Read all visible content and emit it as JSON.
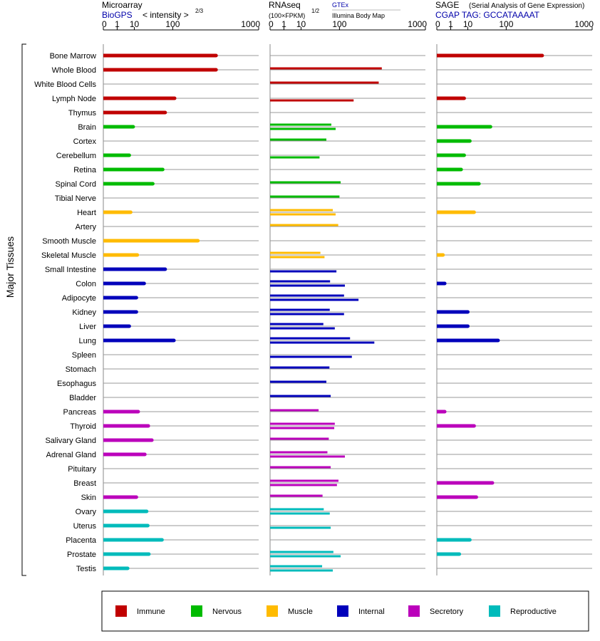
{
  "y_axis_label": "Major Tissues",
  "tissues": [
    {
      "name": "Bone Marrow",
      "group": "immune"
    },
    {
      "name": "Whole Blood",
      "group": "immune"
    },
    {
      "name": "White Blood Cells",
      "group": "immune"
    },
    {
      "name": "Lymph Node",
      "group": "immune"
    },
    {
      "name": "Thymus",
      "group": "immune"
    },
    {
      "name": "Brain",
      "group": "nervous"
    },
    {
      "name": "Cortex",
      "group": "nervous"
    },
    {
      "name": "Cerebellum",
      "group": "nervous"
    },
    {
      "name": "Retina",
      "group": "nervous"
    },
    {
      "name": "Spinal Cord",
      "group": "nervous"
    },
    {
      "name": "Tibial Nerve",
      "group": "nervous"
    },
    {
      "name": "Heart",
      "group": "muscle"
    },
    {
      "name": "Artery",
      "group": "muscle"
    },
    {
      "name": "Smooth Muscle",
      "group": "muscle"
    },
    {
      "name": "Skeletal Muscle",
      "group": "muscle"
    },
    {
      "name": "Small Intestine",
      "group": "internal"
    },
    {
      "name": "Colon",
      "group": "internal"
    },
    {
      "name": "Adipocyte",
      "group": "internal"
    },
    {
      "name": "Kidney",
      "group": "internal"
    },
    {
      "name": "Liver",
      "group": "internal"
    },
    {
      "name": "Lung",
      "group": "internal"
    },
    {
      "name": "Spleen",
      "group": "internal"
    },
    {
      "name": "Stomach",
      "group": "internal"
    },
    {
      "name": "Esophagus",
      "group": "internal"
    },
    {
      "name": "Bladder",
      "group": "internal"
    },
    {
      "name": "Pancreas",
      "group": "secretory"
    },
    {
      "name": "Thyroid",
      "group": "secretory"
    },
    {
      "name": "Salivary Gland",
      "group": "secretory"
    },
    {
      "name": "Adrenal Gland",
      "group": "secretory"
    },
    {
      "name": "Pituitary",
      "group": "secretory"
    },
    {
      "name": "Breast",
      "group": "secretory"
    },
    {
      "name": "Skin",
      "group": "secretory"
    },
    {
      "name": "Ovary",
      "group": "reproductive"
    },
    {
      "name": "Uterus",
      "group": "reproductive"
    },
    {
      "name": "Placenta",
      "group": "reproductive"
    },
    {
      "name": "Prostate",
      "group": "reproductive"
    },
    {
      "name": "Testis",
      "group": "reproductive"
    }
  ],
  "groups": [
    {
      "key": "immune",
      "label": "Immune",
      "color": "#c00000"
    },
    {
      "key": "nervous",
      "label": "Nervous",
      "color": "#00bb00"
    },
    {
      "key": "muscle",
      "label": "Muscle",
      "color": "#ffbb00"
    },
    {
      "key": "internal",
      "label": "Internal",
      "color": "#0000bb"
    },
    {
      "key": "secretory",
      "label": "Secretory",
      "color": "#bb00bb"
    },
    {
      "key": "reproductive",
      "label": "Reproductive",
      "color": "#00bbbb"
    }
  ],
  "chart_data": [
    {
      "type": "bar",
      "title": "Microarray",
      "subtitle": "BioGPS",
      "scale_note": "< intensity >",
      "scale_exponent": "2/3",
      "x_ticks": [
        "0",
        "1",
        "10",
        "100",
        "1000"
      ],
      "xlim": [
        0,
        1000
      ],
      "values": [
        400,
        400,
        null,
        108,
        72,
        9,
        null,
        6,
        64,
        38,
        null,
        7,
        null,
        242,
        13,
        72,
        22,
        12,
        12,
        6,
        105,
        null,
        null,
        null,
        null,
        14,
        29,
        36,
        23,
        null,
        null,
        12,
        26,
        28,
        62,
        30,
        5
      ]
    },
    {
      "type": "bar",
      "title": "RNAseq",
      "subtitle": "GTEx",
      "subtitle2": "Illumina Body Map",
      "scale_note": "(100×FPKM)",
      "scale_exponent": "1/2",
      "x_ticks": [
        "0",
        "1",
        "10",
        "100",
        "1000"
      ],
      "xlim": [
        0,
        1000
      ],
      "series": [
        {
          "name": "GTEx",
          "values": [
            null,
            390,
            360,
            null,
            null,
            70,
            55,
            null,
            null,
            105,
            100,
            75,
            95,
            null,
            40,
            null,
            66,
            120,
            65,
            47,
            150,
            null,
            64,
            55,
            68,
            36,
            82,
            62,
            58,
            68,
            96,
            45,
            48,
            null,
            null,
            77,
            44
          ]
        },
        {
          "name": "Illumina Body Map",
          "values": [
            null,
            null,
            null,
            170,
            null,
            85,
            null,
            38,
            null,
            null,
            null,
            85,
            null,
            null,
            50,
            88,
            124,
            200,
            120,
            82,
            320,
            160,
            null,
            null,
            null,
            null,
            80,
            null,
            124,
            null,
            90,
            null,
            65,
            68,
            null,
            105,
            75
          ]
        }
      ]
    },
    {
      "type": "bar",
      "title": "SAGE",
      "subtitle": "CGAP TAG: GCCATAAAAT",
      "scale_note": "(Serial Analysis of Gene Expression)",
      "x_ticks": [
        "0",
        "1",
        "10",
        "100",
        "1000"
      ],
      "xlim": [
        0,
        1000
      ],
      "values": [
        330,
        null,
        null,
        7,
        null,
        48,
        12,
        7,
        5,
        24,
        null,
        17,
        null,
        null,
        0.1,
        null,
        0.2,
        null,
        10,
        10,
        70,
        null,
        null,
        null,
        null,
        0.2,
        17,
        null,
        null,
        null,
        53,
        20,
        null,
        null,
        12,
        4,
        null
      ]
    }
  ],
  "legend": {
    "position": "bottom"
  }
}
